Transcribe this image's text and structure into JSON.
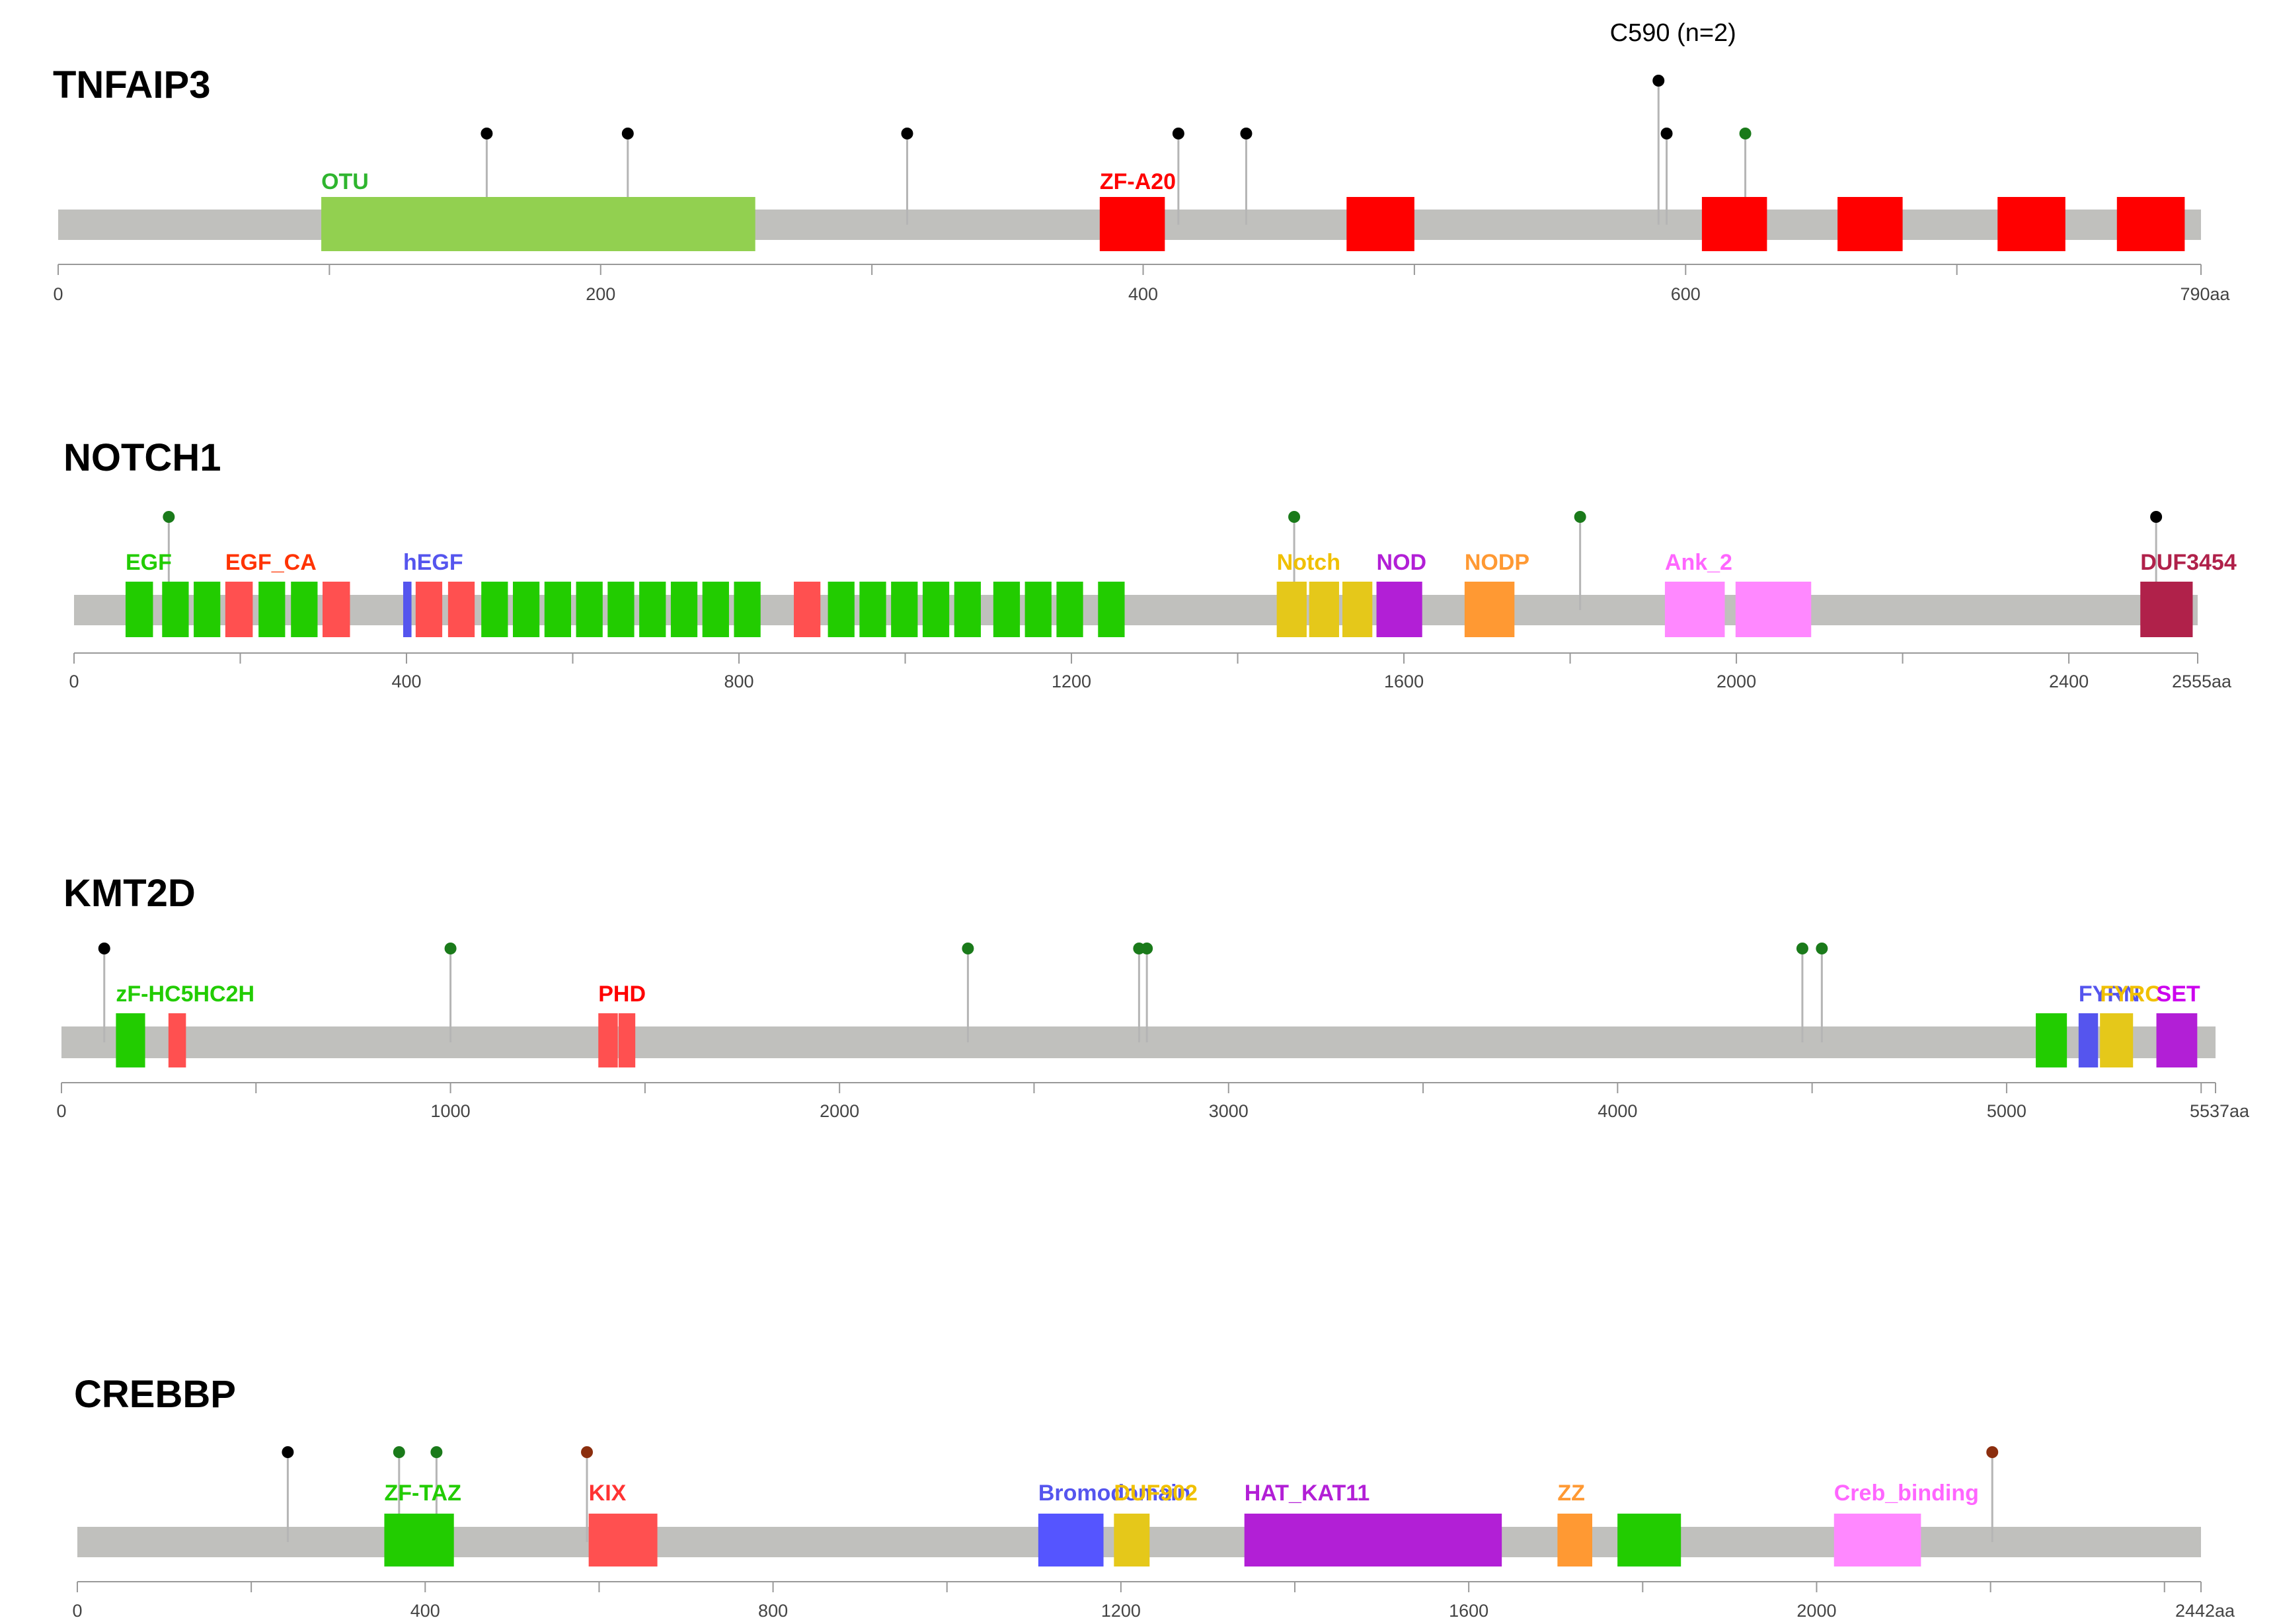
{
  "colors": {
    "backbone": "#c0c0bd",
    "axis": "#999999",
    "stem": "#b5b5b5",
    "mutation_black": "#000000",
    "mutation_green": "#1a7a1a",
    "mutation_brown": "#8b2e0e"
  },
  "genes": [
    {
      "id": "tnfaip3",
      "name": "TNFAIP3",
      "length": 790,
      "ticks": [
        0,
        200,
        400,
        600
      ],
      "end_label": "790aa",
      "domains": [
        {
          "start": 97,
          "end": 257,
          "color": "#92d050",
          "label": "OTU",
          "label_color": "#2fb52f"
        },
        {
          "start": 384,
          "end": 408,
          "color": "#ff0000",
          "label": "ZF-A20",
          "label_color": "#ff0000"
        },
        {
          "start": 475,
          "end": 500,
          "color": "#ff0000",
          "label": ""
        },
        {
          "start": 606,
          "end": 630,
          "color": "#ff0000",
          "label": ""
        },
        {
          "start": 656,
          "end": 680,
          "color": "#ff0000",
          "label": ""
        },
        {
          "start": 715,
          "end": 740,
          "color": "#ff0000",
          "label": ""
        },
        {
          "start": 759,
          "end": 784,
          "color": "#ff0000",
          "label": ""
        }
      ],
      "mutations": [
        {
          "pos": 158,
          "color": "black",
          "level": 1
        },
        {
          "pos": 210,
          "color": "black",
          "level": 1
        },
        {
          "pos": 313,
          "color": "black",
          "level": 1
        },
        {
          "pos": 413,
          "color": "black",
          "level": 1
        },
        {
          "pos": 438,
          "color": "black",
          "level": 1
        },
        {
          "pos": 590,
          "color": "black",
          "level": 2,
          "annotation": "C590 (n=2)"
        },
        {
          "pos": 593,
          "color": "black",
          "level": 1
        },
        {
          "pos": 622,
          "color": "green",
          "level": 1
        }
      ]
    },
    {
      "id": "notch1",
      "name": "NOTCH1",
      "length": 2555,
      "ticks": [
        0,
        400,
        800,
        1200,
        1600,
        2000,
        2400
      ],
      "end_label": "2555aa",
      "domains": [
        {
          "start": 62,
          "end": 95,
          "color": "#22cc00",
          "label": "EGF",
          "label_color": "#22cc00"
        },
        {
          "start": 106,
          "end": 138,
          "color": "#22cc00",
          "label": ""
        },
        {
          "start": 144,
          "end": 176,
          "color": "#22cc00",
          "label": ""
        },
        {
          "start": 182,
          "end": 215,
          "color": "#ff5050",
          "label": "EGF_CA",
          "label_color": "#ff3300"
        },
        {
          "start": 222,
          "end": 254,
          "color": "#22cc00",
          "label": ""
        },
        {
          "start": 261,
          "end": 293,
          "color": "#22cc00",
          "label": ""
        },
        {
          "start": 299,
          "end": 332,
          "color": "#ff5050",
          "label": ""
        },
        {
          "start": 396,
          "end": 406,
          "color": "#5555ee",
          "label": "hEGF",
          "label_color": "#5555ee"
        },
        {
          "start": 411,
          "end": 443,
          "color": "#ff5050",
          "label": ""
        },
        {
          "start": 450,
          "end": 482,
          "color": "#ff5050",
          "label": ""
        },
        {
          "start": 490,
          "end": 522,
          "color": "#22cc00",
          "label": ""
        },
        {
          "start": 528,
          "end": 560,
          "color": "#22cc00",
          "label": ""
        },
        {
          "start": 566,
          "end": 598,
          "color": "#22cc00",
          "label": ""
        },
        {
          "start": 604,
          "end": 636,
          "color": "#22cc00",
          "label": ""
        },
        {
          "start": 642,
          "end": 674,
          "color": "#22cc00",
          "label": ""
        },
        {
          "start": 680,
          "end": 712,
          "color": "#22cc00",
          "label": ""
        },
        {
          "start": 718,
          "end": 750,
          "color": "#22cc00",
          "label": ""
        },
        {
          "start": 756,
          "end": 788,
          "color": "#22cc00",
          "label": ""
        },
        {
          "start": 794,
          "end": 826,
          "color": "#22cc00",
          "label": ""
        },
        {
          "start": 866,
          "end": 898,
          "color": "#ff5050",
          "label": ""
        },
        {
          "start": 907,
          "end": 939,
          "color": "#22cc00",
          "label": ""
        },
        {
          "start": 945,
          "end": 977,
          "color": "#22cc00",
          "label": ""
        },
        {
          "start": 983,
          "end": 1015,
          "color": "#22cc00",
          "label": ""
        },
        {
          "start": 1021,
          "end": 1053,
          "color": "#22cc00",
          "label": ""
        },
        {
          "start": 1059,
          "end": 1091,
          "color": "#22cc00",
          "label": ""
        },
        {
          "start": 1106,
          "end": 1138,
          "color": "#22cc00",
          "label": ""
        },
        {
          "start": 1144,
          "end": 1176,
          "color": "#22cc00",
          "label": ""
        },
        {
          "start": 1182,
          "end": 1214,
          "color": "#22cc00",
          "label": ""
        },
        {
          "start": 1232,
          "end": 1264,
          "color": "#22cc00",
          "label": ""
        },
        {
          "start": 1447,
          "end": 1483,
          "color": "#e5c81a",
          "label": "Notch",
          "label_color": "#f0c000"
        },
        {
          "start": 1486,
          "end": 1522,
          "color": "#e5c81a",
          "label": ""
        },
        {
          "start": 1526,
          "end": 1562,
          "color": "#e5c81a",
          "label": ""
        },
        {
          "start": 1567,
          "end": 1622,
          "color": "#b21fd6",
          "label": "NOD",
          "label_color": "#b21fd6"
        },
        {
          "start": 1673,
          "end": 1733,
          "color": "#ff9933",
          "label": "NODP",
          "label_color": "#ff9933"
        },
        {
          "start": 1914,
          "end": 1986,
          "color": "#ff88ff",
          "label": "Ank_2",
          "label_color": "#ff66ff"
        },
        {
          "start": 1999,
          "end": 2090,
          "color": "#ff88ff",
          "label": ""
        },
        {
          "start": 2486,
          "end": 2549,
          "color": "#b0214a",
          "label": "DUF3454",
          "label_color": "#b0214a"
        }
      ],
      "mutations": [
        {
          "pos": 114,
          "color": "green",
          "level": 1
        },
        {
          "pos": 1468,
          "color": "green",
          "level": 1
        },
        {
          "pos": 1812,
          "color": "green",
          "level": 1
        },
        {
          "pos": 2505,
          "color": "black",
          "level": 1
        }
      ]
    },
    {
      "id": "kmt2d",
      "name": "KMT2D",
      "length": 5537,
      "ticks": [
        0,
        1000,
        2000,
        3000,
        4000,
        5000
      ],
      "end_label": "5537aa",
      "domains": [
        {
          "start": 140,
          "end": 215,
          "color": "#22cc00",
          "label": "zF-HC5HC2H",
          "label_color": "#22cc00"
        },
        {
          "start": 275,
          "end": 320,
          "color": "#ff5050",
          "label": ""
        },
        {
          "start": 1380,
          "end": 1430,
          "color": "#ff5050",
          "label": "PHD",
          "label_color": "#ff0000"
        },
        {
          "start": 1432,
          "end": 1475,
          "color": "#ff5050",
          "label": ""
        },
        {
          "start": 5075,
          "end": 5155,
          "color": "#22cc00",
          "label": ""
        },
        {
          "start": 5185,
          "end": 5235,
          "color": "#5555ee",
          "label": "FYRN",
          "label_color": "#5555ee"
        },
        {
          "start": 5240,
          "end": 5325,
          "color": "#e5c81a",
          "label": "FYRC",
          "label_color": "#f0c000"
        },
        {
          "start": 5385,
          "end": 5490,
          "color": "#b21fd6",
          "label": "SET",
          "label_color": "#cc00ee"
        }
      ],
      "mutations": [
        {
          "pos": 110,
          "color": "black",
          "level": 1
        },
        {
          "pos": 1000,
          "color": "green",
          "level": 1
        },
        {
          "pos": 2330,
          "color": "green",
          "level": 1
        },
        {
          "pos": 2770,
          "color": "green",
          "level": 1
        },
        {
          "pos": 2790,
          "color": "green",
          "level": 1
        },
        {
          "pos": 4475,
          "color": "green",
          "level": 1
        },
        {
          "pos": 4525,
          "color": "green",
          "level": 1
        }
      ]
    },
    {
      "id": "crebbp",
      "name": "CREBBP",
      "length": 2442,
      "ticks": [
        0,
        400,
        800,
        1200,
        1600,
        2000
      ],
      "end_label": "2442aa",
      "domains": [
        {
          "start": 353,
          "end": 433,
          "color": "#22cc00",
          "label": "ZF-TAZ",
          "label_color": "#22cc00"
        },
        {
          "start": 588,
          "end": 667,
          "color": "#ff5050",
          "label": "KIX",
          "label_color": "#ff3333"
        },
        {
          "start": 1105,
          "end": 1180,
          "color": "#5555ff",
          "label": "Bromodomain",
          "label_color": "#5555ee"
        },
        {
          "start": 1192,
          "end": 1233,
          "color": "#e5c81a",
          "label": "DUF902",
          "label_color": "#f0c000"
        },
        {
          "start": 1342,
          "end": 1638,
          "color": "#b21fd6",
          "label": "HAT_KAT11",
          "label_color": "#b21fd6"
        },
        {
          "start": 1702,
          "end": 1742,
          "color": "#ff9933",
          "label": "ZZ",
          "label_color": "#ff9933"
        },
        {
          "start": 1771,
          "end": 1844,
          "color": "#22cc00",
          "label": ""
        },
        {
          "start": 2020,
          "end": 2120,
          "color": "#ff88ff",
          "label": "Creb_binding",
          "label_color": "#ff66ff"
        }
      ],
      "mutations": [
        {
          "pos": 242,
          "color": "black",
          "level": 1
        },
        {
          "pos": 370,
          "color": "green",
          "level": 1
        },
        {
          "pos": 413,
          "color": "green",
          "level": 1
        },
        {
          "pos": 586,
          "color": "brown",
          "level": 1
        },
        {
          "pos": 2202,
          "color": "brown",
          "level": 1
        }
      ]
    }
  ]
}
